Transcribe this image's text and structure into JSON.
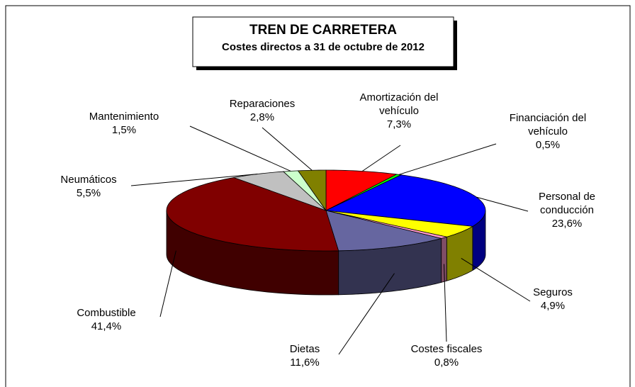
{
  "chart_data": {
    "type": "pie3d",
    "title": "TREN DE CARRETERA",
    "subtitle": "Costes directos a 31 de octubre de 2012",
    "categories": [
      "Amortización del vehículo",
      "Financiación del vehículo",
      "Personal de conducción",
      "Seguros",
      "Costes fiscales",
      "Dietas",
      "Combustible",
      "Neumáticos",
      "Mantenimiento",
      "Reparaciones"
    ],
    "values": [
      7.3,
      0.5,
      23.6,
      4.9,
      0.8,
      11.6,
      41.4,
      5.5,
      1.5,
      2.8
    ],
    "value_labels": [
      "7,3%",
      "0,5%",
      "23,6%",
      "4,9%",
      "0,8%",
      "11,6%",
      "41,4%",
      "5,5%",
      "1,5%",
      "2,8%"
    ],
    "colors": [
      "#ff0000",
      "#00ff00",
      "#0000ff",
      "#ffff00",
      "#ff99cc",
      "#6666a0",
      "#800000",
      "#c0c0c0",
      "#ccffcc",
      "#808000"
    ]
  }
}
